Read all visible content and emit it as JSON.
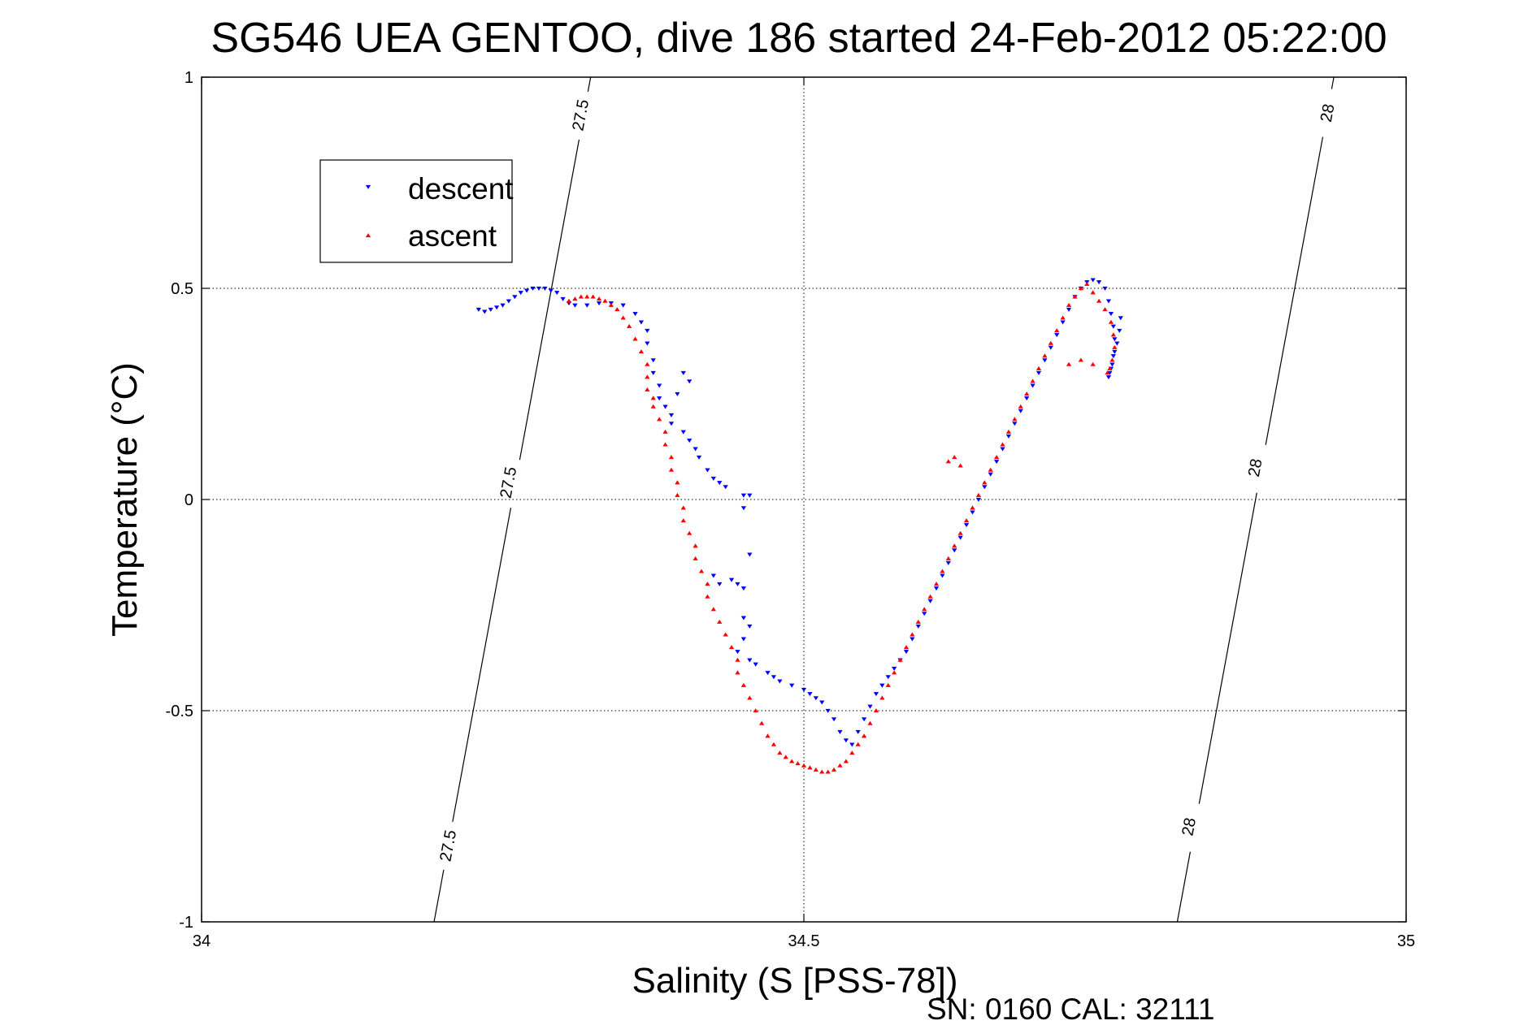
{
  "chart_data": {
    "type": "scatter",
    "title": "SG546 UEA GENTOO, dive 186 started 24-Feb-2012 05:22:00",
    "xlabel": "Salinity (S [PSS-78])",
    "ylabel": "Temperature (°C)",
    "xlim": [
      34,
      35
    ],
    "ylim": [
      -1,
      1
    ],
    "x_ticks": [
      34,
      34.5,
      35
    ],
    "x_tick_labels": [
      "34",
      "34.5",
      "35"
    ],
    "y_ticks": [
      1,
      0.5,
      0,
      -0.5,
      -1
    ],
    "y_tick_labels": [
      "1",
      "0.5",
      "0",
      "-0.5",
      "-1"
    ],
    "grid": true,
    "legend_position": "top-left",
    "footer": "SN: 0160  CAL: 32111",
    "colors": {
      "descent": "#0000ff",
      "ascent": "#ff0000",
      "axes": "#000000",
      "grid": "#000000"
    },
    "contours": [
      {
        "label": "27.5",
        "points": [
          [
            34.193,
            -1
          ],
          [
            34.323,
            1
          ]
        ],
        "label_positions": [
          [
            34.205,
            -0.82
          ],
          [
            34.255,
            0.04
          ],
          [
            34.315,
            0.91
          ]
        ]
      },
      {
        "label": "28",
        "points": [
          [
            34.81,
            -1
          ],
          [
            34.94,
            1
          ]
        ],
        "label_positions": [
          [
            34.82,
            -0.775
          ],
          [
            34.875,
            0.075
          ],
          [
            34.935,
            0.915
          ]
        ]
      }
    ],
    "series": [
      {
        "name": "descent",
        "marker": "triangle-down",
        "points": [
          [
            34.23,
            0.45
          ],
          [
            34.235,
            0.445
          ],
          [
            34.24,
            0.45
          ],
          [
            34.245,
            0.455
          ],
          [
            34.25,
            0.46
          ],
          [
            34.255,
            0.47
          ],
          [
            34.26,
            0.48
          ],
          [
            34.265,
            0.49
          ],
          [
            34.27,
            0.495
          ],
          [
            34.275,
            0.5
          ],
          [
            34.28,
            0.5
          ],
          [
            34.285,
            0.5
          ],
          [
            34.29,
            0.495
          ],
          [
            34.295,
            0.49
          ],
          [
            34.3,
            0.475
          ],
          [
            34.305,
            0.465
          ],
          [
            34.31,
            0.46
          ],
          [
            34.32,
            0.46
          ],
          [
            34.33,
            0.465
          ],
          [
            34.34,
            0.465
          ],
          [
            34.35,
            0.46
          ],
          [
            34.36,
            0.44
          ],
          [
            34.365,
            0.42
          ],
          [
            34.37,
            0.4
          ],
          [
            34.37,
            0.37
          ],
          [
            34.375,
            0.33
          ],
          [
            34.375,
            0.3
          ],
          [
            34.38,
            0.27
          ],
          [
            34.38,
            0.24
          ],
          [
            34.385,
            0.22
          ],
          [
            34.39,
            0.2
          ],
          [
            34.39,
            0.18
          ],
          [
            34.4,
            0.16
          ],
          [
            34.405,
            0.14
          ],
          [
            34.41,
            0.12
          ],
          [
            34.413,
            0.1
          ],
          [
            34.42,
            0.07
          ],
          [
            34.425,
            0.05
          ],
          [
            34.43,
            0.04
          ],
          [
            34.435,
            0.03
          ],
          [
            34.45,
            0.01
          ],
          [
            34.455,
            0.01
          ],
          [
            34.4,
            0.3
          ],
          [
            34.405,
            0.28
          ],
          [
            34.395,
            0.25
          ],
          [
            34.45,
            -0.02
          ],
          [
            34.43,
            -0.2
          ],
          [
            34.425,
            -0.18
          ],
          [
            34.44,
            -0.19
          ],
          [
            34.445,
            -0.2
          ],
          [
            34.45,
            -0.21
          ],
          [
            34.455,
            -0.13
          ],
          [
            34.45,
            -0.28
          ],
          [
            34.455,
            -0.3
          ],
          [
            34.45,
            -0.33
          ],
          [
            34.445,
            -0.36
          ],
          [
            34.455,
            -0.38
          ],
          [
            34.46,
            -0.39
          ],
          [
            34.47,
            -0.41
          ],
          [
            34.475,
            -0.42
          ],
          [
            34.48,
            -0.43
          ],
          [
            34.49,
            -0.44
          ],
          [
            34.5,
            -0.45
          ],
          [
            34.505,
            -0.46
          ],
          [
            34.51,
            -0.47
          ],
          [
            34.515,
            -0.48
          ],
          [
            34.52,
            -0.5
          ],
          [
            34.525,
            -0.52
          ],
          [
            34.53,
            -0.55
          ],
          [
            34.535,
            -0.57
          ],
          [
            34.54,
            -0.58
          ],
          [
            34.545,
            -0.55
          ],
          [
            34.55,
            -0.52
          ],
          [
            34.555,
            -0.49
          ],
          [
            34.56,
            -0.46
          ],
          [
            34.565,
            -0.44
          ],
          [
            34.57,
            -0.42
          ],
          [
            34.575,
            -0.4
          ],
          [
            34.58,
            -0.38
          ],
          [
            34.585,
            -0.36
          ],
          [
            34.59,
            -0.33
          ],
          [
            34.595,
            -0.3
          ],
          [
            34.6,
            -0.27
          ],
          [
            34.605,
            -0.24
          ],
          [
            34.61,
            -0.21
          ],
          [
            34.615,
            -0.18
          ],
          [
            34.62,
            -0.15
          ],
          [
            34.625,
            -0.12
          ],
          [
            34.63,
            -0.09
          ],
          [
            34.635,
            -0.06
          ],
          [
            34.64,
            -0.03
          ],
          [
            34.645,
            0.0
          ],
          [
            34.65,
            0.03
          ],
          [
            34.655,
            0.06
          ],
          [
            34.66,
            0.09
          ],
          [
            34.665,
            0.12
          ],
          [
            34.67,
            0.15
          ],
          [
            34.675,
            0.18
          ],
          [
            34.68,
            0.21
          ],
          [
            34.685,
            0.24
          ],
          [
            34.69,
            0.27
          ],
          [
            34.695,
            0.3
          ],
          [
            34.7,
            0.33
          ],
          [
            34.705,
            0.36
          ],
          [
            34.71,
            0.39
          ],
          [
            34.715,
            0.42
          ],
          [
            34.72,
            0.45
          ],
          [
            34.725,
            0.48
          ],
          [
            34.73,
            0.5
          ],
          [
            34.735,
            0.515
          ],
          [
            34.74,
            0.52
          ],
          [
            34.745,
            0.515
          ],
          [
            34.75,
            0.5
          ],
          [
            34.753,
            0.47
          ],
          [
            34.755,
            0.44
          ],
          [
            34.757,
            0.41
          ],
          [
            34.758,
            0.38
          ],
          [
            34.758,
            0.35
          ],
          [
            34.756,
            0.32
          ],
          [
            34.754,
            0.3
          ],
          [
            34.753,
            0.29
          ],
          [
            34.755,
            0.31
          ],
          [
            34.757,
            0.34
          ],
          [
            34.76,
            0.37
          ],
          [
            34.762,
            0.4
          ],
          [
            34.763,
            0.43
          ]
        ]
      },
      {
        "name": "ascent",
        "marker": "triangle-up",
        "points": [
          [
            34.305,
            0.47
          ],
          [
            34.31,
            0.475
          ],
          [
            34.315,
            0.48
          ],
          [
            34.32,
            0.48
          ],
          [
            34.325,
            0.48
          ],
          [
            34.33,
            0.475
          ],
          [
            34.335,
            0.47
          ],
          [
            34.34,
            0.46
          ],
          [
            34.345,
            0.45
          ],
          [
            34.35,
            0.43
          ],
          [
            34.355,
            0.41
          ],
          [
            34.36,
            0.38
          ],
          [
            34.365,
            0.35
          ],
          [
            34.37,
            0.32
          ],
          [
            34.37,
            0.29
          ],
          [
            34.37,
            0.26
          ],
          [
            34.375,
            0.24
          ],
          [
            34.375,
            0.22
          ],
          [
            34.38,
            0.19
          ],
          [
            34.385,
            0.16
          ],
          [
            34.385,
            0.13
          ],
          [
            34.39,
            0.1
          ],
          [
            34.39,
            0.07
          ],
          [
            34.395,
            0.04
          ],
          [
            34.395,
            0.01
          ],
          [
            34.4,
            -0.02
          ],
          [
            34.4,
            -0.05
          ],
          [
            34.405,
            -0.08
          ],
          [
            34.41,
            -0.11
          ],
          [
            34.41,
            -0.14
          ],
          [
            34.415,
            -0.17
          ],
          [
            34.42,
            -0.2
          ],
          [
            34.42,
            -0.23
          ],
          [
            34.425,
            -0.26
          ],
          [
            34.43,
            -0.29
          ],
          [
            34.435,
            -0.32
          ],
          [
            34.44,
            -0.35
          ],
          [
            34.445,
            -0.38
          ],
          [
            34.445,
            -0.41
          ],
          [
            34.45,
            -0.44
          ],
          [
            34.455,
            -0.47
          ],
          [
            34.46,
            -0.5
          ],
          [
            34.465,
            -0.53
          ],
          [
            34.47,
            -0.56
          ],
          [
            34.475,
            -0.58
          ],
          [
            34.48,
            -0.6
          ],
          [
            34.485,
            -0.61
          ],
          [
            34.49,
            -0.62
          ],
          [
            34.495,
            -0.625
          ],
          [
            34.5,
            -0.63
          ],
          [
            34.505,
            -0.635
          ],
          [
            34.51,
            -0.64
          ],
          [
            34.515,
            -0.645
          ],
          [
            34.52,
            -0.645
          ],
          [
            34.525,
            -0.64
          ],
          [
            34.53,
            -0.63
          ],
          [
            34.535,
            -0.62
          ],
          [
            34.54,
            -0.6
          ],
          [
            34.545,
            -0.58
          ],
          [
            34.55,
            -0.56
          ],
          [
            34.555,
            -0.53
          ],
          [
            34.56,
            -0.5
          ],
          [
            34.565,
            -0.47
          ],
          [
            34.57,
            -0.44
          ],
          [
            34.575,
            -0.41
          ],
          [
            34.58,
            -0.38
          ],
          [
            34.585,
            -0.35
          ],
          [
            34.59,
            -0.32
          ],
          [
            34.595,
            -0.29
          ],
          [
            34.6,
            -0.26
          ],
          [
            34.605,
            -0.23
          ],
          [
            34.61,
            -0.2
          ],
          [
            34.615,
            -0.17
          ],
          [
            34.62,
            -0.14
          ],
          [
            34.625,
            -0.11
          ],
          [
            34.63,
            -0.08
          ],
          [
            34.635,
            -0.05
          ],
          [
            34.64,
            -0.02
          ],
          [
            34.645,
            0.01
          ],
          [
            34.65,
            0.04
          ],
          [
            34.655,
            0.07
          ],
          [
            34.66,
            0.1
          ],
          [
            34.665,
            0.13
          ],
          [
            34.67,
            0.16
          ],
          [
            34.675,
            0.19
          ],
          [
            34.68,
            0.22
          ],
          [
            34.685,
            0.25
          ],
          [
            34.69,
            0.28
          ],
          [
            34.695,
            0.31
          ],
          [
            34.7,
            0.34
          ],
          [
            34.705,
            0.37
          ],
          [
            34.71,
            0.4
          ],
          [
            34.715,
            0.43
          ],
          [
            34.72,
            0.46
          ],
          [
            34.725,
            0.48
          ],
          [
            34.73,
            0.5
          ],
          [
            34.735,
            0.51
          ],
          [
            34.74,
            0.49
          ],
          [
            34.745,
            0.47
          ],
          [
            34.75,
            0.45
          ],
          [
            34.755,
            0.42
          ],
          [
            34.757,
            0.39
          ],
          [
            34.758,
            0.36
          ],
          [
            34.756,
            0.33
          ],
          [
            34.754,
            0.31
          ],
          [
            34.752,
            0.3
          ],
          [
            34.74,
            0.32
          ],
          [
            34.73,
            0.33
          ],
          [
            34.72,
            0.32
          ],
          [
            34.63,
            0.08
          ],
          [
            34.62,
            0.09
          ],
          [
            34.625,
            0.1
          ],
          [
            34.64,
            -0.02
          ]
        ]
      }
    ]
  }
}
